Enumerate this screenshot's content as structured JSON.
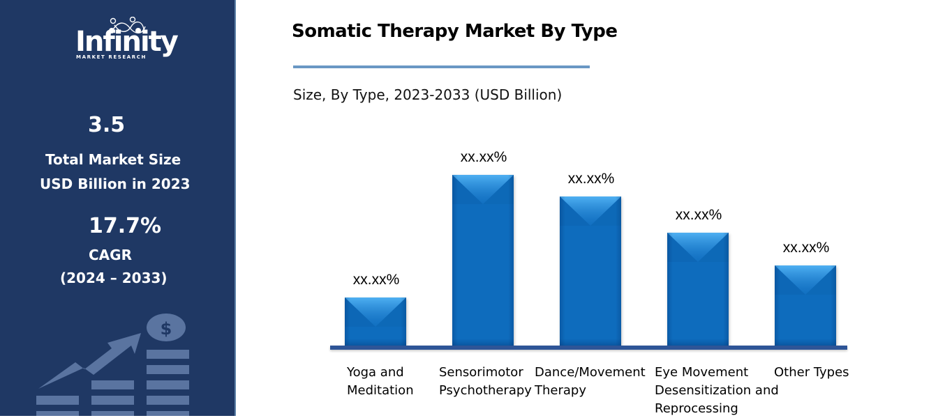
{
  "sidebar": {
    "logo": {
      "word": "Infinity",
      "sub": "MARKET RESEARCH"
    },
    "market_size_value": "3.5",
    "market_size_label_1": "Total Market Size",
    "market_size_label_2": "USD Billion in 2023",
    "cagr_value": "17.7%",
    "cagr_label": "CAGR",
    "cagr_period": "(2024 – 2033)",
    "illustration_icon": "growth-chart-dollar-icon",
    "background": "#1f3864"
  },
  "header": {
    "title": "Somatic Therapy Market By Type",
    "subtitle": "Size, By Type, 2023-2033 (USD Billion)",
    "rule_color": "#6a97c4"
  },
  "chart_data": {
    "type": "bar",
    "title": "Somatic Therapy Market By Type",
    "subtitle": "Size, By Type, 2023-2033 (USD Billion)",
    "xlabel": "",
    "ylabel": "",
    "grid": false,
    "legend": null,
    "bar_color": "#0e6cbd",
    "categories": [
      "Yoga and Meditation",
      "Sensorimotor Psychotherapy",
      "Dance/Movement Therapy",
      "Eye Movement Desensitization and Reprocessing",
      "Other Types"
    ],
    "category_label_lines": [
      "Yoga and\nMeditation",
      "Sensorimotor\nPsychotherapy",
      "Dance/Movement\nTherapy",
      "Eye Movement\nDesensitization and\nReprocessing",
      "Other Types"
    ],
    "data_labels": [
      "xx.xx%",
      "xx.xx%",
      "xx.xx%",
      "xx.xx%",
      "xx.xx%"
    ],
    "relative_heights": [
      69,
      245,
      214,
      162,
      115
    ],
    "note": "Values are masked as xx.xx%; relative_heights are bar heights in pixels (unitless, no axis)"
  }
}
